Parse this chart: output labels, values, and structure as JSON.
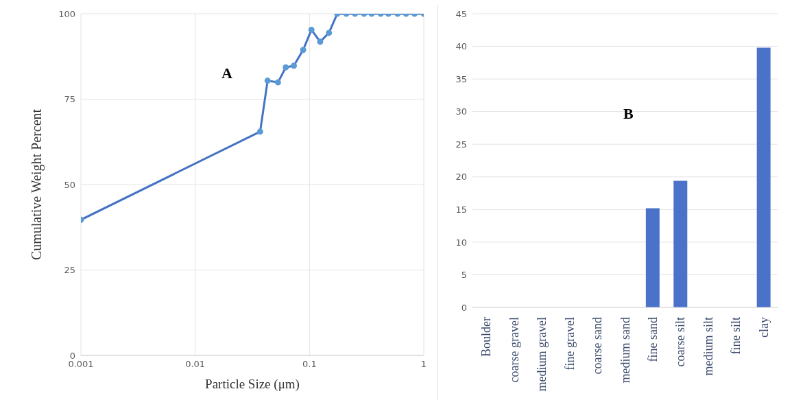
{
  "chart_data": [
    {
      "type": "line",
      "title": "A",
      "xlabel": "Particle Size (μm)",
      "ylabel": "Cumulative  Weight Percent",
      "log": "x",
      "grid": true,
      "marker": "circle",
      "line_style": "solid",
      "series": [
        {
          "color": "#4472c4",
          "x": [
            0.001,
            0.037,
            0.043,
            0.053,
            0.062,
            0.073,
            0.088,
            0.104,
            0.124,
            0.148,
            0.175,
            0.21,
            0.25,
            0.3,
            0.35,
            0.42,
            0.49,
            0.59,
            0.7,
            0.83,
            1
          ],
          "values": [
            39.7,
            65.5,
            80.4,
            79.9,
            84.3,
            84.8,
            89.4,
            95.3,
            91.8,
            94.4,
            100,
            100,
            100,
            100,
            100,
            100,
            100,
            100,
            100,
            100,
            100
          ]
        }
      ],
      "xlim": [
        0.001,
        1
      ],
      "xticks": [
        0.001,
        0.01,
        0.1,
        1
      ],
      "ylim": [
        0,
        100
      ],
      "yticks": [
        0,
        25,
        50,
        75,
        100
      ]
    },
    {
      "type": "bar",
      "title": "B",
      "grid": "y",
      "categories": [
        "Boulder",
        "coarse gravel",
        "medium gravel",
        "fine gravel",
        "coarse sand",
        "medium sand",
        "fine sand",
        "coarse silt",
        "medium silt",
        "fine silt",
        "clay"
      ],
      "values": [
        0,
        0,
        0,
        0,
        0,
        0,
        15.2,
        19.4,
        0,
        0,
        39.8
      ],
      "color": "#4a72c8",
      "ylim": [
        0,
        45
      ],
      "yticks": [
        0,
        5,
        10,
        15,
        20,
        25,
        30,
        35,
        40,
        45
      ]
    }
  ]
}
